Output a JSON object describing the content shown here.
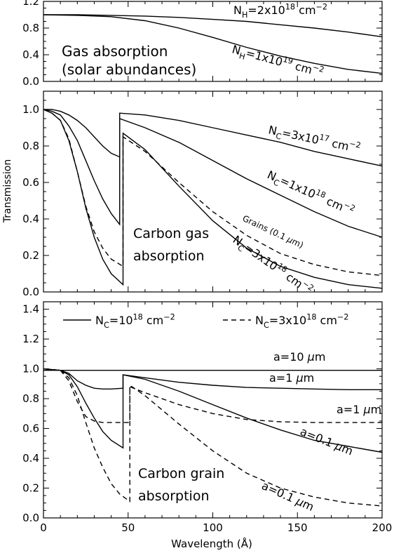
{
  "figure": {
    "xlabel": "Wavelength (Å)",
    "ylabel": "Transmission"
  },
  "chart_data": [
    {
      "type": "line",
      "title": "",
      "annotation": [
        "Gas absorption",
        "(solar abundances)"
      ],
      "xlim": [
        0,
        200
      ],
      "ylim": [
        0,
        1.2
      ],
      "x_ticks": [
        0,
        50,
        100,
        150,
        200
      ],
      "x_tick_labels": [
        "",
        "",
        "",
        "",
        ""
      ],
      "y_ticks": [
        0,
        0.4,
        0.8,
        1.2
      ],
      "y_tick_labels": [
        "0.0",
        "0.4",
        "0.8",
        "1.2"
      ],
      "y_minor_ticks": [
        0.2,
        0.6,
        1.0
      ],
      "series": [
        {
          "name": "N_H=2x10^18 cm^-2",
          "style": "solid",
          "label": [
            "N",
            "H",
            "=2x10",
            "18",
            " cm",
            "−2"
          ],
          "x": [
            0,
            20,
            40,
            60,
            80,
            100,
            120,
            140,
            160,
            180,
            200
          ],
          "y": [
            1.0,
            1.0,
            0.99,
            0.98,
            0.96,
            0.93,
            0.9,
            0.85,
            0.8,
            0.74,
            0.67
          ]
        },
        {
          "name": "N_H=1x10^19 cm^-2",
          "style": "solid",
          "label": [
            "N",
            "H",
            "=1x10",
            "19",
            " cm",
            "−2"
          ],
          "x": [
            0,
            20,
            40,
            60,
            80,
            100,
            120,
            140,
            160,
            180,
            200
          ],
          "y": [
            1.0,
            0.99,
            0.97,
            0.91,
            0.8,
            0.66,
            0.51,
            0.38,
            0.27,
            0.18,
            0.12
          ]
        }
      ]
    },
    {
      "type": "line",
      "title": "",
      "annotation": [
        "Carbon gas",
        "absorption"
      ],
      "xlim": [
        0,
        200
      ],
      "ylim": [
        0,
        1.1
      ],
      "x_ticks": [
        0,
        50,
        100,
        150,
        200
      ],
      "x_tick_labels": [
        "",
        "",
        "",
        "",
        ""
      ],
      "y_ticks": [
        0.0,
        0.2,
        0.4,
        0.6,
        0.8,
        1.0
      ],
      "y_tick_labels": [
        "0.0",
        "0.2",
        "0.4",
        "0.6",
        "0.8",
        "1.0"
      ],
      "series": [
        {
          "name": "N_C=3x10^17 cm^-2",
          "style": "solid",
          "label": [
            "N",
            "C",
            "=3x10",
            "17",
            " cm",
            "−2"
          ],
          "x": [
            0,
            5,
            10,
            15,
            20,
            25,
            30,
            35,
            40,
            45,
            45,
            60,
            80,
            100,
            120,
            140,
            160,
            180,
            200
          ],
          "y": [
            1.0,
            1.0,
            0.99,
            0.97,
            0.94,
            0.9,
            0.85,
            0.8,
            0.76,
            0.74,
            0.98,
            0.97,
            0.94,
            0.9,
            0.86,
            0.82,
            0.77,
            0.73,
            0.69
          ]
        },
        {
          "name": "N_C=1x10^18 cm^-2",
          "style": "solid",
          "label": [
            "N",
            "C",
            "=1x10",
            "18",
            " cm",
            "−2"
          ],
          "x": [
            0,
            5,
            10,
            15,
            20,
            25,
            30,
            35,
            40,
            45,
            45,
            60,
            80,
            100,
            120,
            140,
            160,
            180,
            200
          ],
          "y": [
            1.0,
            0.99,
            0.97,
            0.91,
            0.83,
            0.72,
            0.61,
            0.51,
            0.43,
            0.37,
            0.95,
            0.9,
            0.82,
            0.72,
            0.62,
            0.53,
            0.44,
            0.36,
            0.3
          ]
        },
        {
          "name": "N_C=3x10^18 cm^-2",
          "style": "solid",
          "label": [
            "N",
            "C",
            "=3x10",
            "18",
            " cm",
            "−2"
          ],
          "x": [
            0,
            5,
            10,
            15,
            20,
            25,
            30,
            35,
            40,
            47,
            47,
            60,
            80,
            100,
            120,
            140,
            160,
            180,
            200
          ],
          "y": [
            1.0,
            0.98,
            0.94,
            0.83,
            0.66,
            0.46,
            0.3,
            0.18,
            0.1,
            0.04,
            0.87,
            0.78,
            0.58,
            0.39,
            0.24,
            0.14,
            0.08,
            0.04,
            0.02
          ]
        },
        {
          "name": "Grains (0.1 µm)",
          "style": "dashed",
          "label": [
            "Grains (0.1 ",
            "µ",
            "m)"
          ],
          "x": [
            0,
            5,
            10,
            15,
            20,
            25,
            30,
            35,
            40,
            47,
            47,
            60,
            80,
            100,
            120,
            140,
            160,
            180,
            200
          ],
          "y": [
            1.0,
            0.98,
            0.94,
            0.84,
            0.66,
            0.47,
            0.33,
            0.24,
            0.18,
            0.14,
            0.85,
            0.77,
            0.6,
            0.44,
            0.31,
            0.21,
            0.15,
            0.11,
            0.09
          ]
        }
      ]
    },
    {
      "type": "line",
      "title": "",
      "annotation": [
        "Carbon grain",
        "absorption"
      ],
      "xlim": [
        0,
        200
      ],
      "ylim": [
        0,
        1.45
      ],
      "x_ticks": [
        0,
        50,
        100,
        150,
        200
      ],
      "x_tick_labels": [
        "0",
        "50",
        "100",
        "150",
        "200"
      ],
      "y_ticks": [
        0.0,
        0.2,
        0.4,
        0.6,
        0.8,
        1.0,
        1.2,
        1.4
      ],
      "y_tick_labels": [
        "0.0",
        "0.2",
        "0.4",
        "0.6",
        "0.8",
        "1.0",
        "1.2",
        "1.4"
      ],
      "legend": [
        {
          "style": "solid",
          "label": [
            "N",
            "C",
            "=10",
            "18",
            " cm",
            "−2"
          ]
        },
        {
          "style": "dashed",
          "label": [
            "N",
            "C",
            "=3x10",
            "18",
            " cm",
            "−2"
          ]
        }
      ],
      "series": [
        {
          "name": "a=10 µm",
          "style": "solid",
          "label": [
            "a=10 ",
            "µ",
            "m"
          ],
          "x": [
            0,
            200
          ],
          "y": [
            0.99,
            0.99
          ]
        },
        {
          "name": "a=1 µm (solid)",
          "style": "solid",
          "label": [
            "a=1 ",
            "µ",
            "m"
          ],
          "x": [
            0,
            10,
            15,
            20,
            25,
            30,
            35,
            40,
            47,
            47,
            60,
            80,
            100,
            120,
            140,
            160,
            180,
            200
          ],
          "y": [
            1.0,
            0.99,
            0.97,
            0.92,
            0.89,
            0.87,
            0.865,
            0.865,
            0.87,
            0.96,
            0.94,
            0.91,
            0.89,
            0.875,
            0.87,
            0.865,
            0.86,
            0.86
          ]
        },
        {
          "name": "a=1 µm (dashed)",
          "style": "dashed",
          "label": [
            "a=1 ",
            "µ",
            "m"
          ],
          "x": [
            0,
            10,
            15,
            20,
            25,
            30,
            35,
            40,
            51,
            51,
            60,
            80,
            100,
            120,
            140,
            160,
            180,
            200
          ],
          "y": [
            1.0,
            0.99,
            0.92,
            0.78,
            0.68,
            0.65,
            0.64,
            0.64,
            0.64,
            0.88,
            0.84,
            0.76,
            0.7,
            0.66,
            0.645,
            0.64,
            0.64,
            0.64
          ]
        },
        {
          "name": "a=0.1 µm (solid)",
          "style": "solid",
          "label": [
            "a=0.1 ",
            "µ",
            "m"
          ],
          "x": [
            0,
            10,
            15,
            20,
            25,
            30,
            35,
            40,
            47,
            47,
            60,
            80,
            100,
            120,
            140,
            160,
            180,
            200
          ],
          "y": [
            1.0,
            0.99,
            0.96,
            0.88,
            0.77,
            0.67,
            0.58,
            0.52,
            0.47,
            0.96,
            0.93,
            0.85,
            0.76,
            0.67,
            0.59,
            0.52,
            0.48,
            0.44
          ]
        },
        {
          "name": "a=0.1 µm (dashed)",
          "style": "dashed",
          "label": [
            "a=0.1 ",
            "µ",
            "m"
          ],
          "x": [
            0,
            10,
            15,
            20,
            25,
            30,
            35,
            40,
            45,
            51,
            51,
            60,
            80,
            100,
            120,
            140,
            160,
            180,
            200
          ],
          "y": [
            1.0,
            0.99,
            0.94,
            0.82,
            0.64,
            0.47,
            0.34,
            0.23,
            0.16,
            0.11,
            0.89,
            0.82,
            0.63,
            0.45,
            0.3,
            0.2,
            0.14,
            0.1,
            0.08
          ]
        }
      ]
    }
  ]
}
